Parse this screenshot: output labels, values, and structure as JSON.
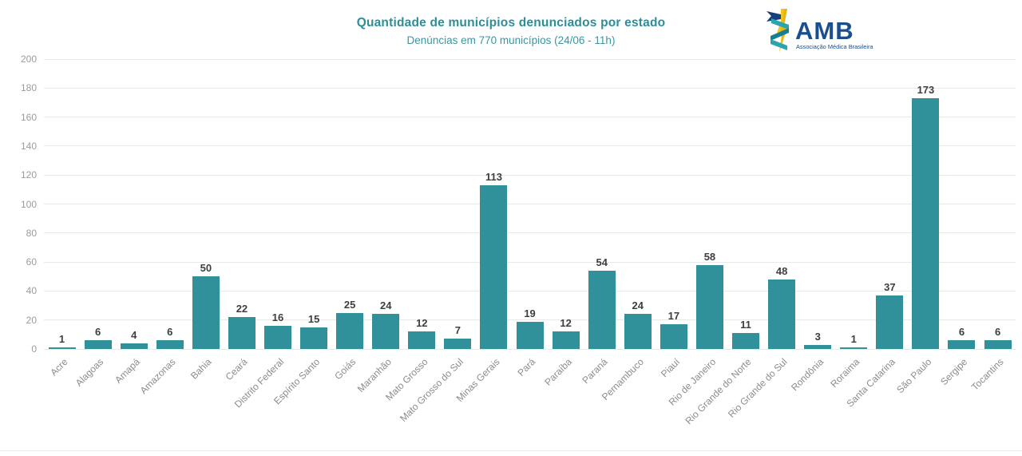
{
  "header": {
    "title_color": "#2d8d99"
  },
  "logo": {
    "name": "AMB",
    "subtitle": "Associação Médica Brasileira",
    "text_color": "#1b4e8d",
    "staff_color": "#f2c51a",
    "ribbon_color": "#2ca4b0",
    "ribbon_dark_color": "#157f95",
    "flag_color": "#173f7a"
  },
  "chart_data": {
    "type": "bar",
    "title": "Quantidade de municípios denunciados por estado",
    "subtitle": "Denúncias em 770 municípios (24/06 - 11h)",
    "categories": [
      "Acre",
      "Alagoas",
      "Amapá",
      "Amazonas",
      "Bahia",
      "Ceará",
      "Distrito Federal",
      "Espírito Santo",
      "Goiás",
      "Maranhão",
      "Mato Grosso",
      "Mato Grosso do Sul",
      "Minas Gerais",
      "Pará",
      "Paraíba",
      "Paraná",
      "Pernambuco",
      "Piauí",
      "Rio de Janeiro",
      "Rio Grande do Norte",
      "Rio Grande do Sul",
      "Rondônia",
      "Roraima",
      "Santa Catarina",
      "São Paulo",
      "Sergipe",
      "Tocantins"
    ],
    "values": [
      1,
      6,
      4,
      6,
      50,
      22,
      16,
      15,
      25,
      24,
      12,
      7,
      113,
      19,
      12,
      54,
      24,
      17,
      58,
      11,
      48,
      3,
      1,
      37,
      173,
      6,
      6
    ],
    "total_municipios": 770,
    "bar_color": "#31919b",
    "value_label_color": "#3e3e3e",
    "xlabel": "",
    "ylabel": "",
    "axis": {
      "ylim": [
        0,
        200
      ],
      "ytick_step": 20,
      "grid": true,
      "gridline_color": "#e9e9e9",
      "ytick_color": "#9b9b9b",
      "xtick_color": "#8c8c8c",
      "x_label_rotation": -45
    },
    "legend": "none"
  }
}
